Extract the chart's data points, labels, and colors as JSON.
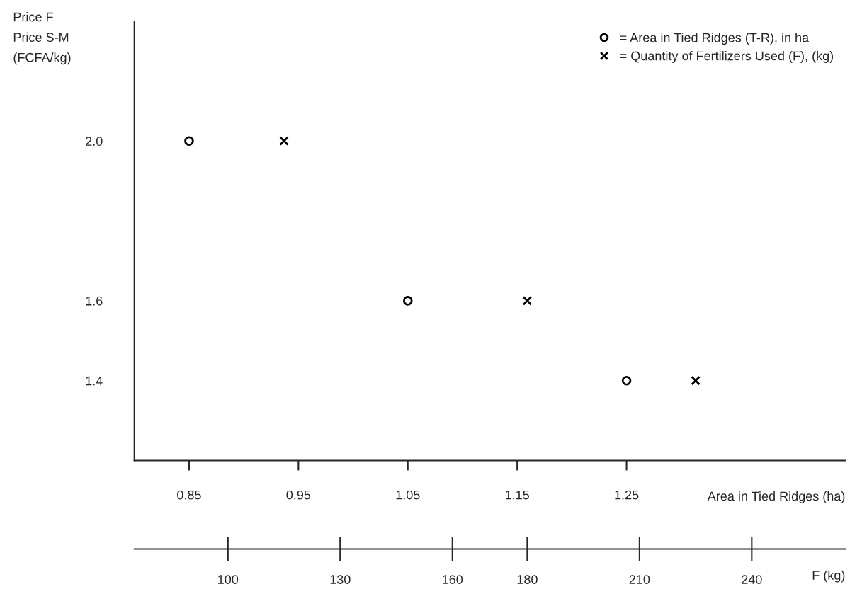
{
  "chart_data": {
    "type": "scatter",
    "ylabel": "Price F\nPrice S-M\n(FCFA/kg)",
    "xlabel": "Area in Tied Ridges (ha)",
    "x2label": "F (kg)",
    "series": [
      {
        "name": "= Area in Tied Ridges (T-R), in ha",
        "color": "#000000",
        "marker": "circle",
        "x": [
          0.85,
          1.05,
          1.25
        ],
        "values": [
          2.0,
          1.6,
          1.4
        ]
      },
      {
        "name": "= Quantity of Fertilizers Used (F), (kg)",
        "color": "#000000",
        "marker": "cross",
        "axis": "x2",
        "x": [
          115,
          180,
          225
        ],
        "values": [
          2.0,
          1.6,
          1.4
        ]
      }
    ],
    "xlim": [
      0.8,
      1.45
    ],
    "xticks": [
      0.85,
      0.95,
      1.05,
      1.15,
      1.25
    ],
    "x2lim": [
      75,
      265
    ],
    "x2ticks": [
      100,
      130,
      160,
      180,
      210,
      240
    ],
    "ylim": [
      1.2,
      2.3
    ],
    "yticks": [
      {
        "value": 1.4,
        "label": "1.4"
      },
      {
        "value": 1.6,
        "label": "1.6"
      },
      {
        "value": 2.0,
        "label": "2.0"
      }
    ],
    "grid": false,
    "legend": "top right"
  }
}
